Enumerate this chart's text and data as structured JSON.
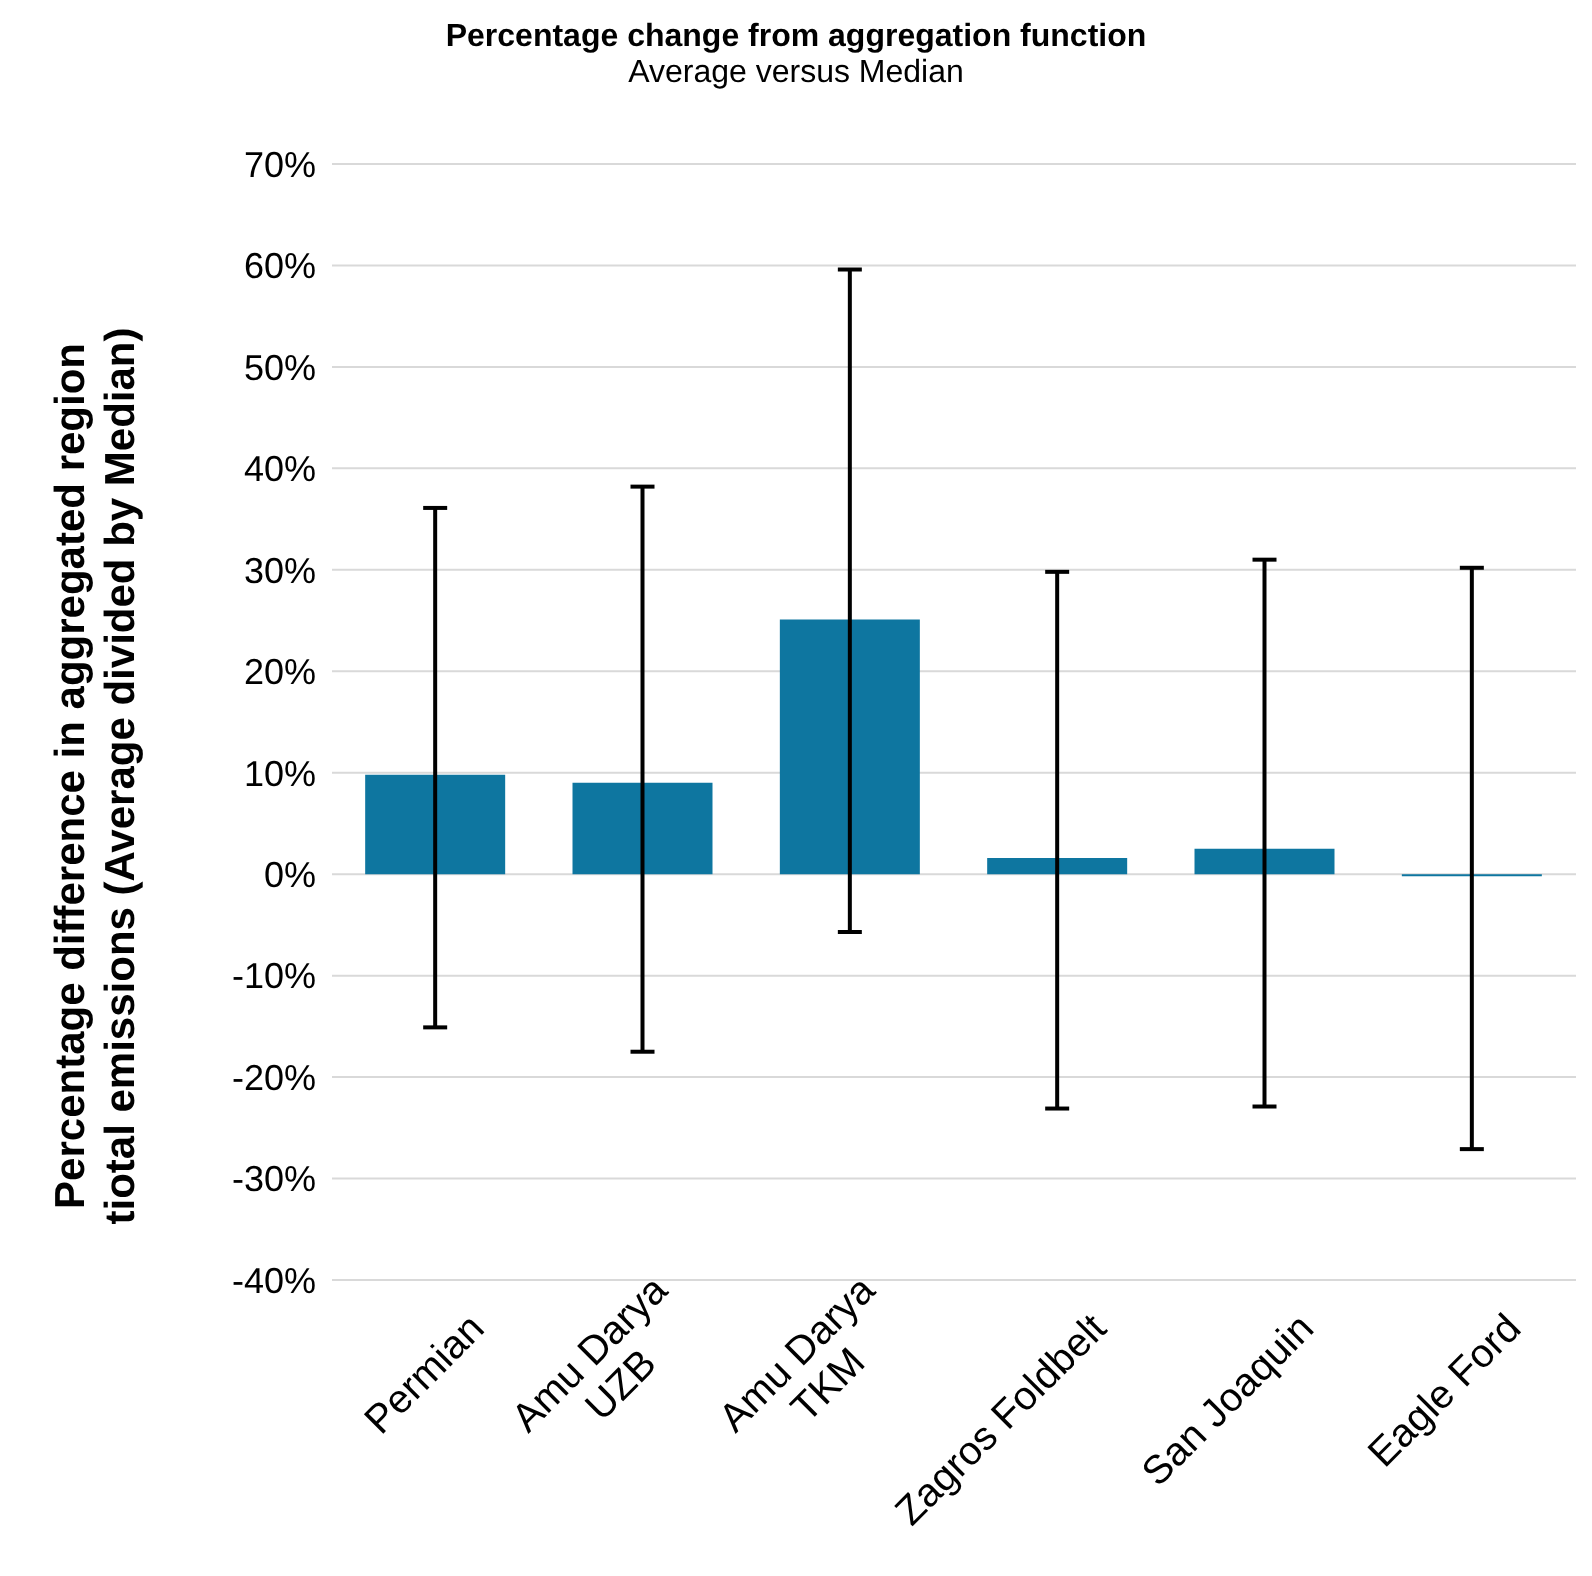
{
  "chart_data": {
    "type": "bar",
    "title": "Percentage change from aggregation function",
    "subtitle": "Average versus Median",
    "ylabel": "Percentage difference in aggregated region tiotal emissions (Average divided by Median)",
    "categories": [
      "Permian",
      "Amu Darya\nUZB",
      "Amu Darya\nTKM",
      "Zagros Foldbelt",
      "San Joaquin",
      "Eagle Ford"
    ],
    "series": [
      {
        "color": "#0e76a0",
        "values": [
          9.8,
          9.0,
          25.1,
          1.6,
          2.5,
          -0.2
        ],
        "errors": [
          [
            -15.1,
            36.1
          ],
          [
            -17.5,
            38.2
          ],
          [
            -5.7,
            59.6
          ],
          [
            -23.1,
            29.8
          ],
          [
            -22.9,
            31.0
          ],
          [
            -27.1,
            30.2
          ]
        ]
      }
    ],
    "ylim": [
      -40,
      70
    ],
    "yticks": [
      {
        "value": -40,
        "label": "-40%"
      },
      {
        "value": -30,
        "label": "-30%"
      },
      {
        "value": -20,
        "label": "-20%"
      },
      {
        "value": -10,
        "label": "-10%"
      },
      {
        "value": 0,
        "label": "0%"
      },
      {
        "value": 10,
        "label": "10%"
      },
      {
        "value": 20,
        "label": "20%"
      },
      {
        "value": 30,
        "label": "30%"
      },
      {
        "value": 40,
        "label": "40%"
      },
      {
        "value": 50,
        "label": "50%"
      },
      {
        "value": 60,
        "label": "60%"
      },
      {
        "value": 70,
        "label": "70%"
      }
    ],
    "grid": "y",
    "legend": false
  }
}
